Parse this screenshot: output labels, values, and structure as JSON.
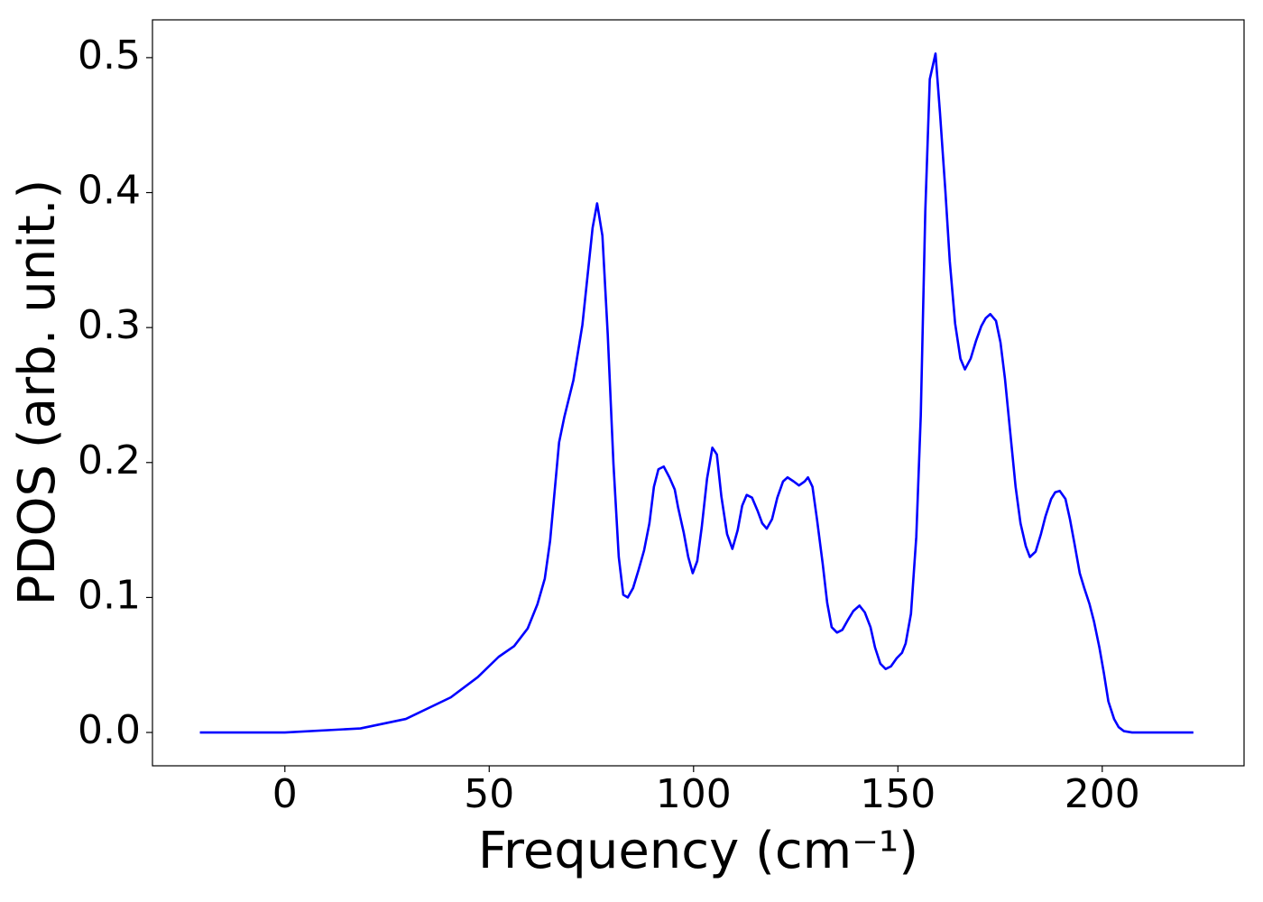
{
  "chart_data": {
    "type": "line",
    "xlabel": "Frequency (cm⁻¹)",
    "ylabel": "PDOS (arb. unit.)",
    "x": [
      -20.8,
      0,
      18.5,
      29.6,
      40.6,
      47.2,
      52.3,
      56.1,
      59.4,
      61.8,
      63.6,
      64.9,
      67.1,
      68.4,
      70.6,
      72.8,
      75.3,
      76.4,
      77.7,
      79.0,
      80.4,
      81.7,
      82.8,
      83.9,
      85.2,
      86.5,
      87.9,
      89.2,
      90.3,
      91.4,
      92.7,
      94.1,
      95.4,
      96.2,
      97.6,
      98.7,
      99.8,
      100.9,
      102.0,
      103.3,
      104.6,
      105.7,
      106.8,
      108.2,
      109.5,
      110.8,
      111.9,
      113.0,
      114.3,
      115.7,
      116.8,
      117.9,
      119.2,
      120.5,
      121.9,
      123.0,
      124.5,
      125.8,
      127.2,
      128.0,
      129.1,
      130.2,
      131.6,
      132.7,
      133.8,
      135.1,
      136.4,
      137.7,
      139.1,
      140.6,
      141.9,
      143.3,
      144.4,
      145.7,
      147.0,
      148.3,
      149.7,
      151.0,
      151.9,
      153.2,
      154.5,
      155.6,
      156.7,
      157.8,
      159.2,
      160.3,
      161.6,
      162.7,
      164.0,
      165.3,
      166.4,
      167.8,
      169.1,
      170.4,
      171.5,
      172.6,
      174.0,
      175.1,
      176.2,
      177.5,
      178.8,
      180.0,
      181.3,
      182.3,
      183.7,
      185.0,
      186.1,
      187.5,
      188.5,
      189.6,
      191.0,
      192.1,
      193.2,
      194.5,
      195.6,
      196.9,
      198.0,
      199.3,
      200.4,
      201.5,
      202.9,
      204.0,
      205.3,
      207.3,
      222.3
    ],
    "series": [
      {
        "color": "#0000ff",
        "values": [
          0,
          0,
          0.003,
          0.01,
          0.026,
          0.041,
          0.056,
          0.064,
          0.077,
          0.095,
          0.114,
          0.142,
          0.215,
          0.234,
          0.261,
          0.302,
          0.374,
          0.392,
          0.368,
          0.295,
          0.199,
          0.13,
          0.102,
          0.1,
          0.107,
          0.12,
          0.135,
          0.155,
          0.182,
          0.195,
          0.197,
          0.189,
          0.18,
          0.167,
          0.148,
          0.13,
          0.118,
          0.127,
          0.152,
          0.188,
          0.211,
          0.206,
          0.175,
          0.147,
          0.136,
          0.15,
          0.168,
          0.176,
          0.174,
          0.164,
          0.155,
          0.151,
          0.158,
          0.174,
          0.186,
          0.189,
          0.186,
          0.183,
          0.186,
          0.189,
          0.182,
          0.158,
          0.125,
          0.096,
          0.078,
          0.074,
          0.076,
          0.083,
          0.09,
          0.094,
          0.089,
          0.078,
          0.063,
          0.051,
          0.047,
          0.049,
          0.055,
          0.059,
          0.066,
          0.088,
          0.145,
          0.235,
          0.386,
          0.484,
          0.503,
          0.459,
          0.402,
          0.349,
          0.303,
          0.277,
          0.269,
          0.277,
          0.29,
          0.301,
          0.307,
          0.31,
          0.305,
          0.289,
          0.262,
          0.222,
          0.182,
          0.155,
          0.138,
          0.13,
          0.134,
          0.147,
          0.16,
          0.173,
          0.178,
          0.179,
          0.173,
          0.158,
          0.14,
          0.118,
          0.107,
          0.095,
          0.082,
          0.063,
          0.044,
          0.023,
          0.01,
          0.004,
          0.001,
          0,
          0
        ]
      }
    ],
    "xlim": [
      -32.4,
      234.7
    ],
    "ylim": [
      -0.0247,
      0.528
    ],
    "xticks": [
      0,
      50,
      100,
      150,
      200
    ],
    "yticks": [
      {
        "value": 0,
        "label": "0.0"
      },
      0.1,
      0.2,
      0.3,
      0.4,
      0.5
    ]
  }
}
